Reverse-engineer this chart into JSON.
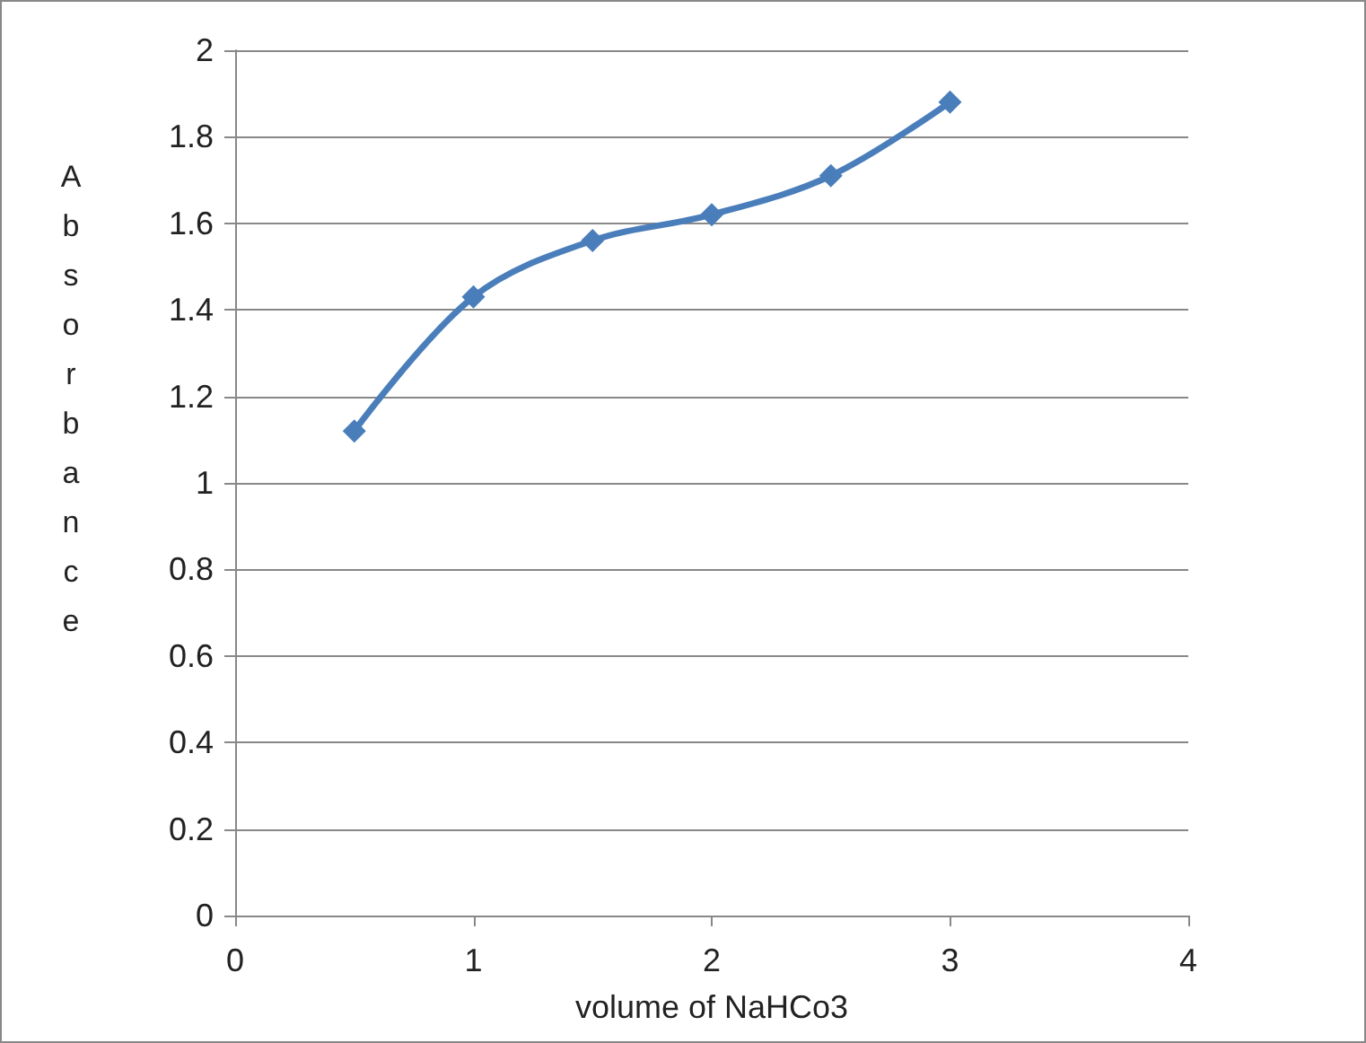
{
  "chart_data": {
    "type": "line",
    "xlabel": "volume of NaHCo3",
    "ylabel": "Absorbance",
    "x": [
      0.5,
      1,
      1.5,
      2,
      2.5,
      3
    ],
    "series": [
      {
        "color": "#4a7ebb",
        "values": [
          1.12,
          1.43,
          1.56,
          1.62,
          1.71,
          1.88
        ]
      }
    ],
    "xlim": [
      0,
      4
    ],
    "xticks": [
      0,
      1,
      2,
      3,
      4
    ],
    "ylim": [
      0,
      2
    ],
    "yticks": [
      0,
      0.2,
      0.4,
      0.6,
      0.8,
      1,
      1.2,
      1.4,
      1.6,
      1.8,
      2
    ],
    "grid": "y",
    "marker": "diamond",
    "line_style": "solid"
  }
}
